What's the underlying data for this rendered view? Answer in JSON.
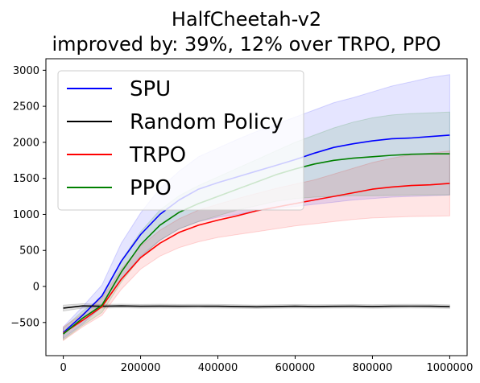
{
  "chart_data": {
    "type": "line",
    "title_lines": [
      "HalfCheetah-v2",
      "improved by: 39%, 12% over TRPO, PPO"
    ],
    "xlabel": "",
    "ylabel": "",
    "xlim": [
      -45000,
      1045000
    ],
    "ylim": [
      -960,
      3160
    ],
    "xticks": [
      0,
      200000,
      400000,
      600000,
      800000,
      1000000
    ],
    "xtick_labels": [
      "0",
      "200000",
      "400000",
      "600000",
      "800000",
      "1000000"
    ],
    "yticks": [
      -500,
      0,
      500,
      1000,
      1500,
      2000,
      2500,
      3000
    ],
    "ytick_labels": [
      "−500",
      "0",
      "500",
      "1000",
      "1500",
      "2000",
      "2500",
      "3000"
    ],
    "grid": false,
    "legend_position": "upper-left",
    "series": [
      {
        "name": "SPU",
        "color": "#0000ff",
        "x": [
          0,
          50000,
          100000,
          150000,
          200000,
          250000,
          300000,
          350000,
          400000,
          450000,
          500000,
          550000,
          600000,
          650000,
          700000,
          750000,
          800000,
          850000,
          900000,
          950000,
          1000000
        ],
        "y": [
          -640,
          -400,
          -130,
          350,
          720,
          1000,
          1200,
          1350,
          1440,
          1520,
          1600,
          1680,
          1760,
          1850,
          1930,
          1980,
          2020,
          2050,
          2060,
          2080,
          2100
        ],
        "band_low": [
          -720,
          -520,
          -280,
          100,
          420,
          640,
          800,
          900,
          960,
          1000,
          1050,
          1080,
          1110,
          1140,
          1170,
          1200,
          1220,
          1240,
          1250,
          1260,
          1270
        ],
        "band_high": [
          -560,
          -280,
          20,
          600,
          1020,
          1360,
          1600,
          1800,
          1920,
          2040,
          2150,
          2250,
          2350,
          2450,
          2550,
          2620,
          2700,
          2780,
          2840,
          2900,
          2940
        ]
      },
      {
        "name": "Random Policy",
        "color": "#000000",
        "x": [
          0,
          50000,
          100000,
          150000,
          200000,
          250000,
          300000,
          350000,
          400000,
          450000,
          500000,
          550000,
          600000,
          650000,
          700000,
          750000,
          800000,
          850000,
          900000,
          950000,
          1000000
        ],
        "y": [
          -300,
          -270,
          -275,
          -270,
          -275,
          -272,
          -275,
          -273,
          -275,
          -278,
          -282,
          -278,
          -275,
          -278,
          -276,
          -274,
          -278,
          -275,
          -273,
          -275,
          -280
        ],
        "band_low": [
          -340,
          -300,
          -300,
          -295,
          -300,
          -298,
          -300,
          -298,
          -300,
          -302,
          -306,
          -302,
          -300,
          -302,
          -300,
          -298,
          -302,
          -300,
          -298,
          -300,
          -305
        ],
        "band_high": [
          -260,
          -240,
          -250,
          -245,
          -250,
          -246,
          -250,
          -248,
          -250,
          -254,
          -258,
          -254,
          -250,
          -254,
          -252,
          -250,
          -254,
          -250,
          -248,
          -250,
          -255
        ]
      },
      {
        "name": "TRPO",
        "color": "#ff0000",
        "x": [
          0,
          50000,
          100000,
          150000,
          200000,
          250000,
          300000,
          350000,
          400000,
          450000,
          500000,
          550000,
          600000,
          650000,
          700000,
          750000,
          800000,
          850000,
          900000,
          950000,
          1000000
        ],
        "y": [
          -650,
          -470,
          -280,
          100,
          400,
          600,
          750,
          850,
          920,
          980,
          1050,
          1100,
          1150,
          1200,
          1250,
          1300,
          1350,
          1380,
          1400,
          1410,
          1430
        ],
        "band_low": [
          -750,
          -560,
          -400,
          -40,
          240,
          420,
          540,
          620,
          680,
          720,
          760,
          800,
          840,
          870,
          900,
          930,
          950,
          960,
          970,
          975,
          980
        ],
        "band_high": [
          -560,
          -380,
          -160,
          240,
          560,
          780,
          940,
          1060,
          1140,
          1220,
          1290,
          1360,
          1420,
          1480,
          1560,
          1640,
          1720,
          1780,
          1830,
          1850,
          1880
        ]
      },
      {
        "name": "PPO",
        "color": "#008000",
        "x": [
          0,
          50000,
          100000,
          150000,
          200000,
          250000,
          300000,
          350000,
          400000,
          450000,
          500000,
          550000,
          600000,
          650000,
          700000,
          750000,
          800000,
          850000,
          900000,
          950000,
          1000000
        ],
        "y": [
          -660,
          -440,
          -260,
          200,
          580,
          850,
          1030,
          1150,
          1250,
          1350,
          1450,
          1550,
          1630,
          1700,
          1750,
          1780,
          1800,
          1820,
          1835,
          1840,
          1840
        ],
        "band_low": [
          -740,
          -540,
          -360,
          60,
          400,
          640,
          800,
          900,
          980,
          1060,
          1120,
          1180,
          1220,
          1240,
          1250,
          1260,
          1260,
          1265,
          1270,
          1270,
          1270
        ],
        "band_high": [
          -580,
          -340,
          -160,
          360,
          760,
          1060,
          1260,
          1400,
          1520,
          1640,
          1760,
          1880,
          2000,
          2100,
          2200,
          2280,
          2340,
          2380,
          2400,
          2410,
          2420
        ]
      }
    ]
  }
}
